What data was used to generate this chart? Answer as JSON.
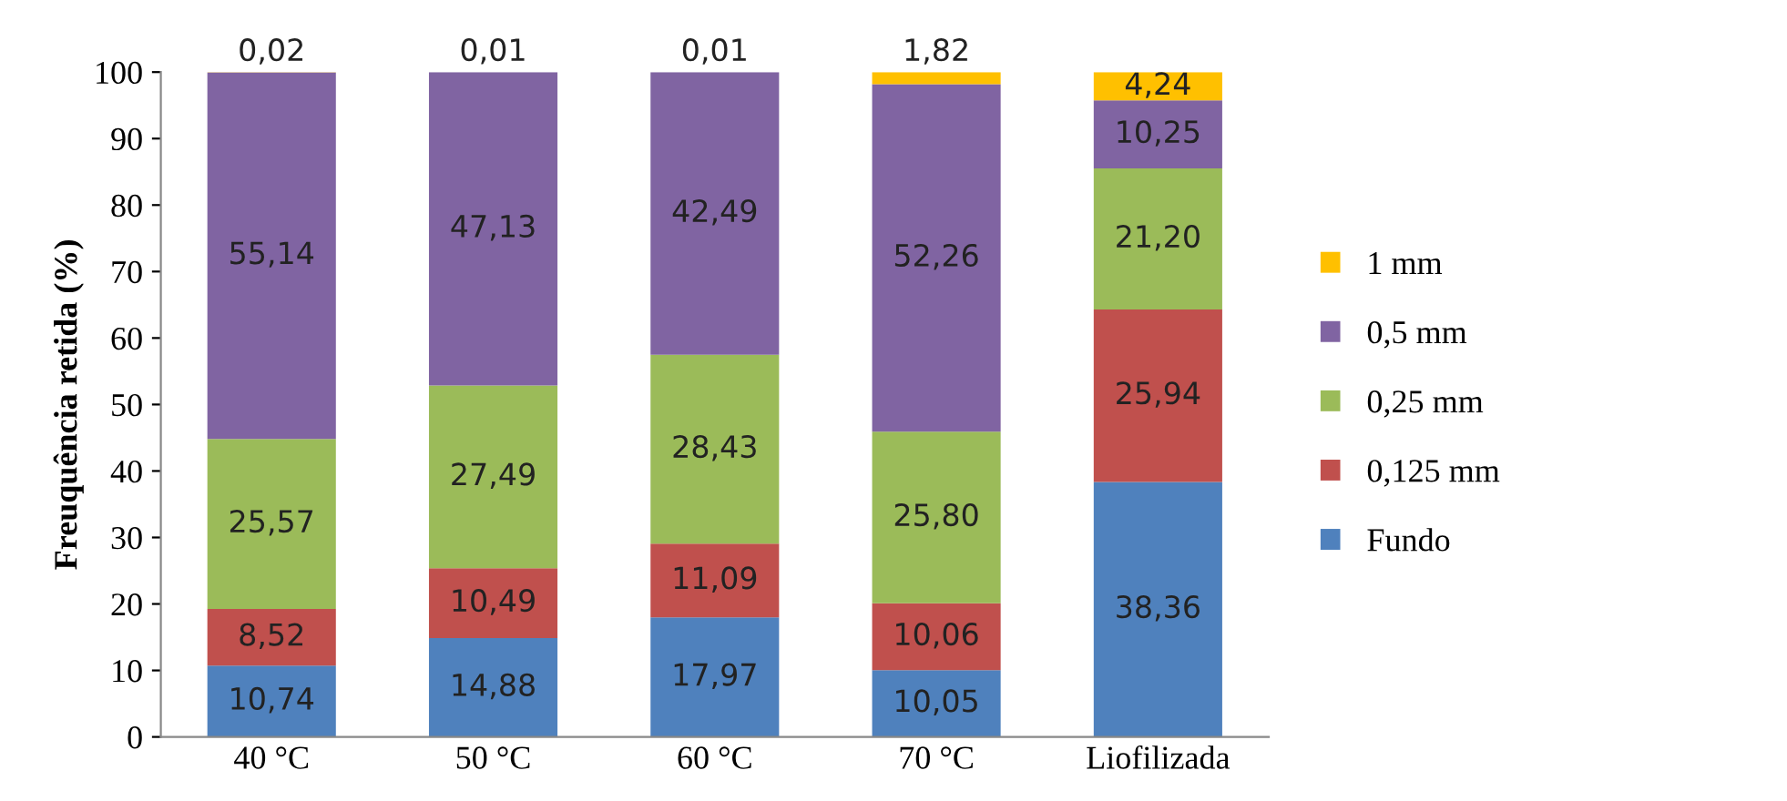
{
  "chart_data": {
    "type": "bar",
    "stacked": true,
    "ylabel": "Freuquência retida (%)",
    "categories": [
      "40 °C",
      "50 °C",
      "60 °C",
      "70 °C",
      "Liofilizada"
    ],
    "ylim": [
      0,
      100
    ],
    "yticks": [
      0,
      10,
      20,
      30,
      40,
      50,
      60,
      70,
      80,
      90,
      100
    ],
    "legend": "right",
    "grid": false,
    "series": [
      {
        "name": "Fundo",
        "color": "#4f81bd",
        "values": [
          10.74,
          14.88,
          17.97,
          10.05,
          38.36
        ],
        "value_labels": [
          "10,74",
          "14,88",
          "17,97",
          "10,05",
          "38,36"
        ]
      },
      {
        "name": "0,125 mm",
        "color": "#c0504d",
        "values": [
          8.52,
          10.49,
          11.09,
          10.06,
          25.94
        ],
        "value_labels": [
          "8,52",
          "10,49",
          "11,09",
          "10,06",
          "25,94"
        ]
      },
      {
        "name": "0,25 mm",
        "color": "#9bbb59",
        "values": [
          25.57,
          27.49,
          28.43,
          25.8,
          21.2
        ],
        "value_labels": [
          "25,57",
          "27,49",
          "28,43",
          "25,80",
          "21,20"
        ]
      },
      {
        "name": "0,5 mm",
        "color": "#8064a2",
        "values": [
          55.14,
          47.13,
          42.49,
          52.26,
          10.25
        ],
        "value_labels": [
          "55,14",
          "47,13",
          "42,49",
          "52,26",
          "10,25"
        ]
      },
      {
        "name": "1 mm",
        "color": "#ffc000",
        "values": [
          0.02,
          0.01,
          0.01,
          1.82,
          4.24
        ],
        "value_labels": [
          "0,02",
          "0,01",
          "0,01",
          "1,82",
          "4,24"
        ]
      }
    ]
  }
}
